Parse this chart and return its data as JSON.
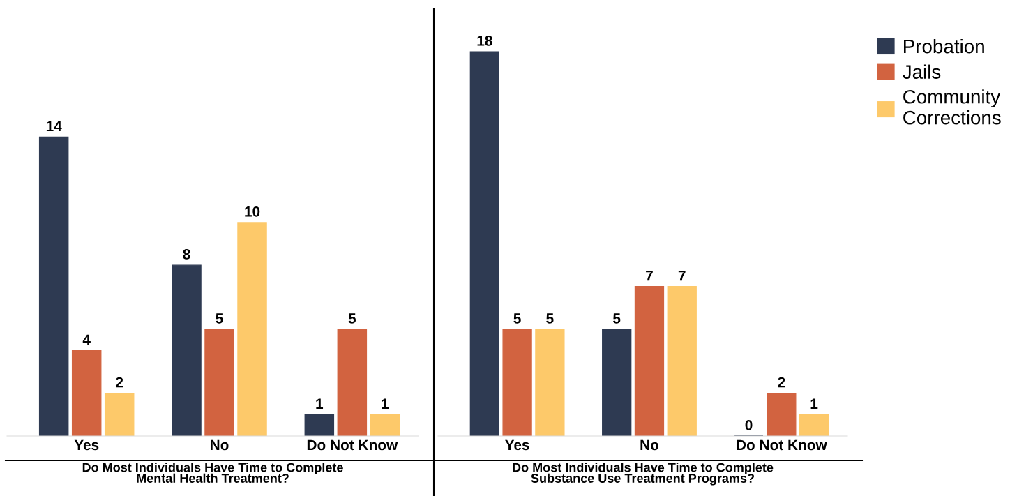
{
  "chart_data": [
    {
      "type": "bar",
      "xlabel": "Do Most Individuals Have Time to Complete\nMental Health Treatment?",
      "categories": [
        "Yes",
        "No",
        "Do Not Know"
      ],
      "series": [
        {
          "color": "#2e3a52",
          "values": [
            14,
            8,
            1
          ]
        },
        {
          "color": "#d26340",
          "values": [
            4,
            5,
            5
          ]
        },
        {
          "color": "#fdc96a",
          "values": [
            2,
            10,
            1
          ]
        }
      ],
      "tick_labels": "x",
      "data_labels": true,
      "grid": false
    },
    {
      "type": "bar",
      "xlabel": "Do Most Individuals Have Time to Complete\nSubstance Use Treatment Programs?",
      "categories": [
        "Yes",
        "No",
        "Do Not Know"
      ],
      "series": [
        {
          "name": "Probation",
          "color": "#2e3a52",
          "values": [
            18,
            5,
            0
          ]
        },
        {
          "name": "Jails",
          "color": "#d26340",
          "values": [
            5,
            7,
            2
          ]
        },
        {
          "name": "Community\nCorrections",
          "color": "#fdc96a",
          "values": [
            5,
            7,
            1
          ]
        }
      ],
      "tick_labels": "x",
      "data_labels": true,
      "grid": false,
      "legend": "top right"
    }
  ]
}
